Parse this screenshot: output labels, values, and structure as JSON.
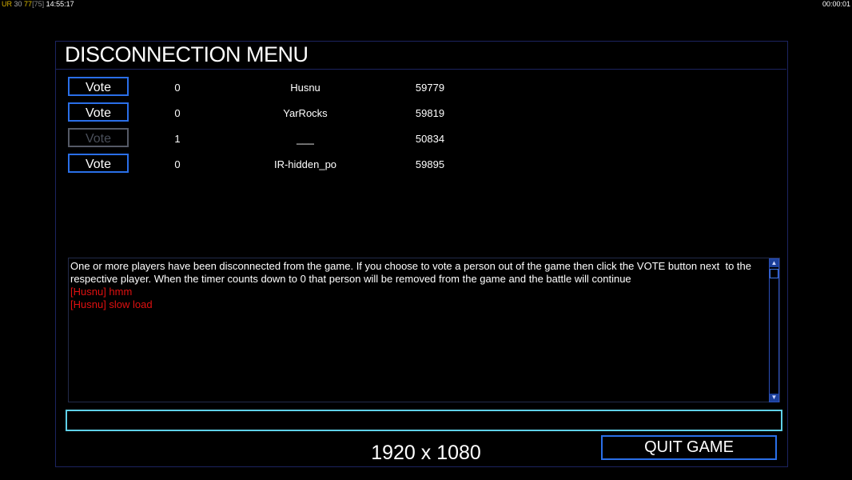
{
  "status": {
    "ur_label": "UR",
    "fps": "30",
    "ping": "77",
    "ping_bracket": "[75]",
    "clock": "14:55:17",
    "elapsed": "00:00:01"
  },
  "title": "DISCONNECTION MENU",
  "players": [
    {
      "vote_label": "Vote",
      "enabled": true,
      "votes": "0",
      "name": "Husnu",
      "score": "59779"
    },
    {
      "vote_label": "Vote",
      "enabled": true,
      "votes": "0",
      "name": "YarRocks",
      "score": "59819"
    },
    {
      "vote_label": "Vote",
      "enabled": false,
      "votes": "1",
      "name": "___",
      "score": "50834"
    },
    {
      "vote_label": "Vote",
      "enabled": true,
      "votes": "0",
      "name": "IR-hidden_po",
      "score": "59895"
    }
  ],
  "chat": {
    "info": "One or more players have been disconnected from the game. If you choose to vote a person out of the game then click the VOTE button next  to the respective player. When the timer counts down to 0 that person will be removed from the game and the battle will continue",
    "messages": [
      "[Husnu] hmm",
      "[Husnu] slow load"
    ],
    "input_value": ""
  },
  "resolution": "1920 x 1080",
  "quit_label": "QUIT GAME",
  "colors": {
    "accent": "#2a6fe8",
    "chat_input": "#5fd0e8",
    "message": "#e01010"
  }
}
